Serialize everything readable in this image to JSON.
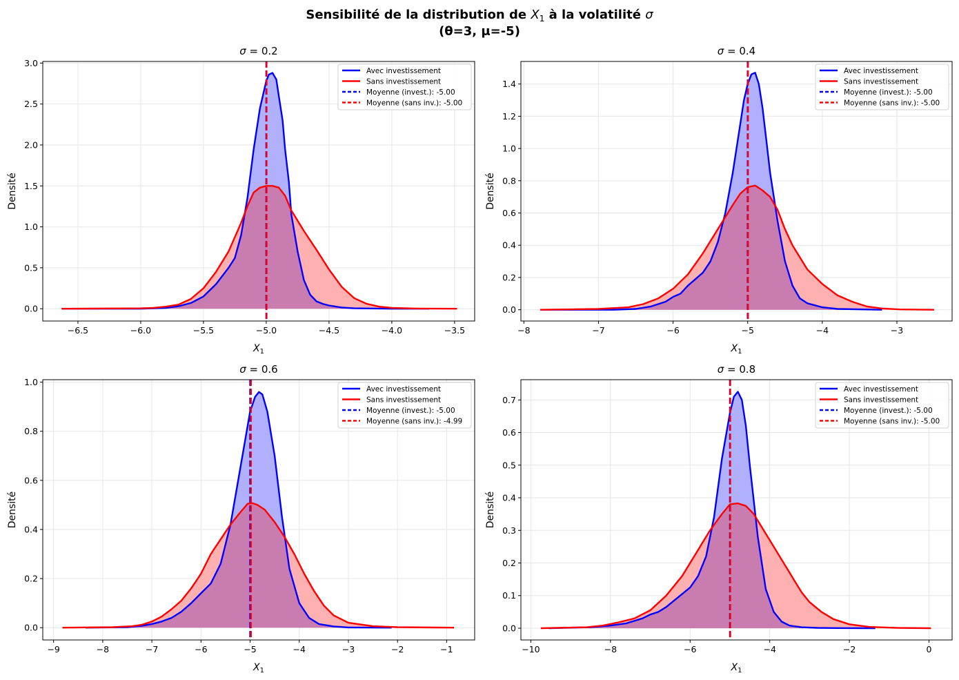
{
  "figure": {
    "suptitle_prefix": "Sensibilité de la distribution de ",
    "suptitle_var": "X",
    "suptitle_sub": "1",
    "suptitle_mid": " à la volatilité ",
    "suptitle_sigma": "σ",
    "suptitle_line2": "(θ=3, μ=-5)"
  },
  "colors": {
    "invest_line": "#0000ff",
    "invest_fill": "#b0b0fc",
    "sans_line": "#ff0000",
    "sans_fill": "#ffb0b0",
    "overlap_fill": "#c87cb0",
    "grid": "#e6e6e6"
  },
  "chart_data": [
    {
      "type": "area",
      "title_sigma": "σ",
      "title_eq": " = 0.2",
      "xlabel_var": "X",
      "xlabel_sub": "1",
      "ylabel": "Densité",
      "xlim": [
        -6.78,
        -3.34
      ],
      "ylim": [
        -0.15,
        3.02
      ],
      "xticks": [
        -6.5,
        -6.0,
        -5.5,
        -5.0,
        -4.5,
        -4.0,
        -3.5
      ],
      "xtick_labels": [
        "−6.5",
        "−6.0",
        "−5.5",
        "−5.0",
        "−4.5",
        "−4.0",
        "−3.5"
      ],
      "yticks": [
        0,
        0.5,
        1.0,
        1.5,
        2.0,
        2.5,
        3.0
      ],
      "ytick_labels": [
        "0.0",
        "0.5",
        "1.0",
        "1.5",
        "2.0",
        "2.5",
        "3.0"
      ],
      "grid": true,
      "legend_position": "top-right",
      "legend": [
        "Avec investissement",
        "Sans investissement",
        "Moyenne (invest.): -5.00",
        "Moyenne (sans inv.): -5.00"
      ],
      "series": [
        {
          "name": "Avec investissement",
          "x": [
            -6.63,
            -6.0,
            -5.8,
            -5.7,
            -5.6,
            -5.5,
            -5.4,
            -5.3,
            -5.25,
            -5.2,
            -5.15,
            -5.1,
            -5.05,
            -5.0,
            -4.98,
            -4.95,
            -4.92,
            -4.9,
            -4.87,
            -4.85,
            -4.82,
            -4.8,
            -4.75,
            -4.7,
            -4.65,
            -4.6,
            -4.55,
            -4.5,
            -4.4,
            -4.3,
            -4.0,
            -3.7
          ],
          "y": [
            0,
            0,
            0.01,
            0.03,
            0.07,
            0.15,
            0.3,
            0.5,
            0.62,
            0.9,
            1.35,
            1.95,
            2.45,
            2.78,
            2.86,
            2.88,
            2.8,
            2.6,
            2.3,
            1.95,
            1.55,
            1.15,
            0.7,
            0.35,
            0.17,
            0.09,
            0.06,
            0.04,
            0.015,
            0.005,
            0,
            0
          ]
        },
        {
          "name": "Sans investissement",
          "x": [
            -6.63,
            -6.0,
            -5.9,
            -5.8,
            -5.7,
            -5.6,
            -5.5,
            -5.4,
            -5.3,
            -5.2,
            -5.15,
            -5.1,
            -5.05,
            -5.0,
            -4.95,
            -4.9,
            -4.85,
            -4.8,
            -4.7,
            -4.6,
            -4.5,
            -4.4,
            -4.3,
            -4.2,
            -4.1,
            -4.0,
            -3.8,
            -3.48
          ],
          "y": [
            0,
            0.005,
            0.01,
            0.025,
            0.05,
            0.12,
            0.25,
            0.45,
            0.7,
            1.05,
            1.25,
            1.42,
            1.48,
            1.5,
            1.5,
            1.48,
            1.38,
            1.2,
            0.95,
            0.72,
            0.48,
            0.27,
            0.13,
            0.06,
            0.025,
            0.01,
            0.003,
            0
          ]
        }
      ],
      "mean_invest": -5.0,
      "mean_sans": -5.0
    },
    {
      "type": "area",
      "title_sigma": "σ",
      "title_eq": " = 0.4",
      "xlabel_var": "X",
      "xlabel_sub": "1",
      "ylabel": "Densité",
      "xlim": [
        -8.04,
        -2.26
      ],
      "ylim": [
        -0.07,
        1.54
      ],
      "xticks": [
        -8,
        -7,
        -6,
        -5,
        -4,
        -3
      ],
      "xtick_labels": [
        "−8",
        "−7",
        "−6",
        "−5",
        "−4",
        "−3"
      ],
      "yticks": [
        0,
        0.2,
        0.4,
        0.6,
        0.8,
        1.0,
        1.2,
        1.4
      ],
      "ytick_labels": [
        "0.0",
        "0.2",
        "0.4",
        "0.6",
        "0.8",
        "1.0",
        "1.2",
        "1.4"
      ],
      "grid": true,
      "legend_position": "top-right",
      "legend": [
        "Avec investissement",
        "Sans investissement",
        "Moyenne (invest.): -5.00",
        "Moyenne (sans inv.): -5.00"
      ],
      "series": [
        {
          "name": "Avec investissement",
          "x": [
            -7.78,
            -6.8,
            -6.5,
            -6.3,
            -6.1,
            -6.0,
            -5.9,
            -5.8,
            -5.7,
            -5.6,
            -5.5,
            -5.4,
            -5.3,
            -5.2,
            -5.1,
            -5.05,
            -5.0,
            -4.95,
            -4.9,
            -4.85,
            -4.8,
            -4.75,
            -4.7,
            -4.6,
            -4.5,
            -4.4,
            -4.3,
            -4.2,
            -4.0,
            -3.8,
            -3.2
          ],
          "y": [
            0,
            0,
            0.005,
            0.02,
            0.05,
            0.08,
            0.1,
            0.15,
            0.19,
            0.23,
            0.3,
            0.42,
            0.6,
            0.85,
            1.15,
            1.3,
            1.4,
            1.46,
            1.47,
            1.4,
            1.25,
            1.05,
            0.85,
            0.55,
            0.3,
            0.15,
            0.07,
            0.04,
            0.015,
            0.005,
            0
          ]
        },
        {
          "name": "Sans investissement",
          "x": [
            -7.78,
            -7.0,
            -6.6,
            -6.4,
            -6.2,
            -6.0,
            -5.8,
            -5.6,
            -5.4,
            -5.2,
            -5.1,
            -5.0,
            -4.9,
            -4.8,
            -4.7,
            -4.6,
            -4.5,
            -4.4,
            -4.2,
            -4.0,
            -3.8,
            -3.6,
            -3.4,
            -3.2,
            -2.96,
            -2.5
          ],
          "y": [
            0,
            0.005,
            0.015,
            0.035,
            0.07,
            0.13,
            0.22,
            0.35,
            0.5,
            0.65,
            0.72,
            0.76,
            0.77,
            0.74,
            0.7,
            0.62,
            0.5,
            0.4,
            0.25,
            0.16,
            0.09,
            0.05,
            0.02,
            0.008,
            0.002,
            0
          ]
        }
      ],
      "mean_invest": -5.0,
      "mean_sans": -5.0
    },
    {
      "type": "area",
      "title_sigma": "σ",
      "title_eq": " = 0.6",
      "xlabel_var": "X",
      "xlabel_sub": "1",
      "ylabel": "Densité",
      "xlim": [
        -9.22,
        -0.43
      ],
      "ylim": [
        -0.05,
        1.01
      ],
      "xticks": [
        -9,
        -8,
        -7,
        -6,
        -5,
        -4,
        -3,
        -2,
        -1
      ],
      "xtick_labels": [
        "−9",
        "−8",
        "−7",
        "−6",
        "−5",
        "−4",
        "−3",
        "−2",
        "−1"
      ],
      "yticks": [
        0,
        0.2,
        0.4,
        0.6,
        0.8,
        1.0
      ],
      "ytick_labels": [
        "0.0",
        "0.2",
        "0.4",
        "0.6",
        "0.8",
        "1.0"
      ],
      "grid": true,
      "legend_position": "top-right",
      "legend": [
        "Avec investissement",
        "Sans investissement",
        "Moyenne (invest.): -5.00",
        "Moyenne (sans inv.): -4.99"
      ],
      "series": [
        {
          "name": "Avec investissement",
          "x": [
            -8.35,
            -7.5,
            -7.2,
            -7.0,
            -6.8,
            -6.6,
            -6.4,
            -6.2,
            -6.0,
            -5.8,
            -5.6,
            -5.4,
            -5.2,
            -5.0,
            -4.9,
            -4.82,
            -4.75,
            -4.65,
            -4.5,
            -4.35,
            -4.2,
            -4.0,
            -3.8,
            -3.6,
            -3.3,
            -3.0,
            -2.12
          ],
          "y": [
            0,
            0.002,
            0.008,
            0.015,
            0.025,
            0.04,
            0.065,
            0.1,
            0.14,
            0.18,
            0.26,
            0.42,
            0.65,
            0.88,
            0.94,
            0.96,
            0.95,
            0.88,
            0.7,
            0.45,
            0.24,
            0.1,
            0.04,
            0.015,
            0.005,
            0.001,
            0
          ]
        },
        {
          "name": "Sans investissement",
          "x": [
            -8.82,
            -7.8,
            -7.4,
            -7.2,
            -7.0,
            -6.8,
            -6.6,
            -6.4,
            -6.2,
            -6.0,
            -5.8,
            -5.6,
            -5.4,
            -5.2,
            -5.05,
            -4.95,
            -4.85,
            -4.7,
            -4.5,
            -4.3,
            -4.1,
            -3.9,
            -3.7,
            -3.5,
            -3.3,
            -3.0,
            -2.5,
            -2.0,
            -0.85
          ],
          "y": [
            0,
            0.002,
            0.006,
            0.012,
            0.025,
            0.045,
            0.075,
            0.11,
            0.16,
            0.22,
            0.3,
            0.36,
            0.42,
            0.47,
            0.505,
            0.507,
            0.5,
            0.48,
            0.43,
            0.37,
            0.3,
            0.22,
            0.15,
            0.09,
            0.05,
            0.02,
            0.006,
            0.002,
            0
          ]
        }
      ],
      "mean_invest": -5.0,
      "mean_sans": -4.99
    },
    {
      "type": "area",
      "title_sigma": "σ",
      "title_eq": " = 0.8",
      "xlabel_var": "X",
      "xlabel_sub": "1",
      "ylabel": "Densité",
      "xlim": [
        -10.25,
        0.58
      ],
      "ylim": [
        -0.036,
        0.762
      ],
      "xticks": [
        -10,
        -8,
        -6,
        -4,
        -2,
        0
      ],
      "xtick_labels": [
        "−10",
        "−8",
        "−6",
        "−4",
        "−2",
        "0"
      ],
      "yticks": [
        0,
        0.1,
        0.2,
        0.3,
        0.4,
        0.5,
        0.6,
        0.7
      ],
      "ytick_labels": [
        "0.0",
        "0.1",
        "0.2",
        "0.3",
        "0.4",
        "0.5",
        "0.6",
        "0.7"
      ],
      "grid": true,
      "legend_position": "top-right",
      "legend": [
        "Avec investissement",
        "Sans investissement",
        "Moyenne (invest.): -5.00",
        "Moyenne (sans inv.): -5.00"
      ],
      "series": [
        {
          "name": "Avec investissement",
          "x": [
            -9.55,
            -8.5,
            -8.0,
            -7.6,
            -7.2,
            -7.0,
            -6.8,
            -6.6,
            -6.4,
            -6.2,
            -6.0,
            -5.8,
            -5.6,
            -5.4,
            -5.2,
            -5.0,
            -4.9,
            -4.8,
            -4.7,
            -4.6,
            -4.5,
            -4.3,
            -4.1,
            -3.9,
            -3.7,
            -3.5,
            -3.2,
            -2.8,
            -2.3,
            -1.35
          ],
          "y": [
            0,
            0.003,
            0.008,
            0.015,
            0.03,
            0.042,
            0.05,
            0.065,
            0.085,
            0.105,
            0.125,
            0.16,
            0.22,
            0.34,
            0.52,
            0.66,
            0.71,
            0.725,
            0.7,
            0.62,
            0.5,
            0.28,
            0.12,
            0.05,
            0.02,
            0.008,
            0.003,
            0.001,
            0.0005,
            0
          ]
        },
        {
          "name": "Sans investissement",
          "x": [
            -9.75,
            -8.6,
            -8.2,
            -7.8,
            -7.4,
            -7.0,
            -6.6,
            -6.2,
            -5.8,
            -5.5,
            -5.2,
            -5.0,
            -4.8,
            -4.6,
            -4.4,
            -4.2,
            -4.0,
            -3.8,
            -3.6,
            -3.4,
            -3.2,
            -3.0,
            -2.7,
            -2.4,
            -2.0,
            -1.5,
            -0.8,
            0.05
          ],
          "y": [
            0,
            0.003,
            0.008,
            0.018,
            0.03,
            0.055,
            0.1,
            0.16,
            0.24,
            0.3,
            0.35,
            0.38,
            0.383,
            0.375,
            0.35,
            0.31,
            0.27,
            0.23,
            0.19,
            0.15,
            0.11,
            0.08,
            0.05,
            0.028,
            0.012,
            0.004,
            0.001,
            0
          ]
        }
      ],
      "mean_invest": -5.0,
      "mean_sans": -5.0
    }
  ]
}
